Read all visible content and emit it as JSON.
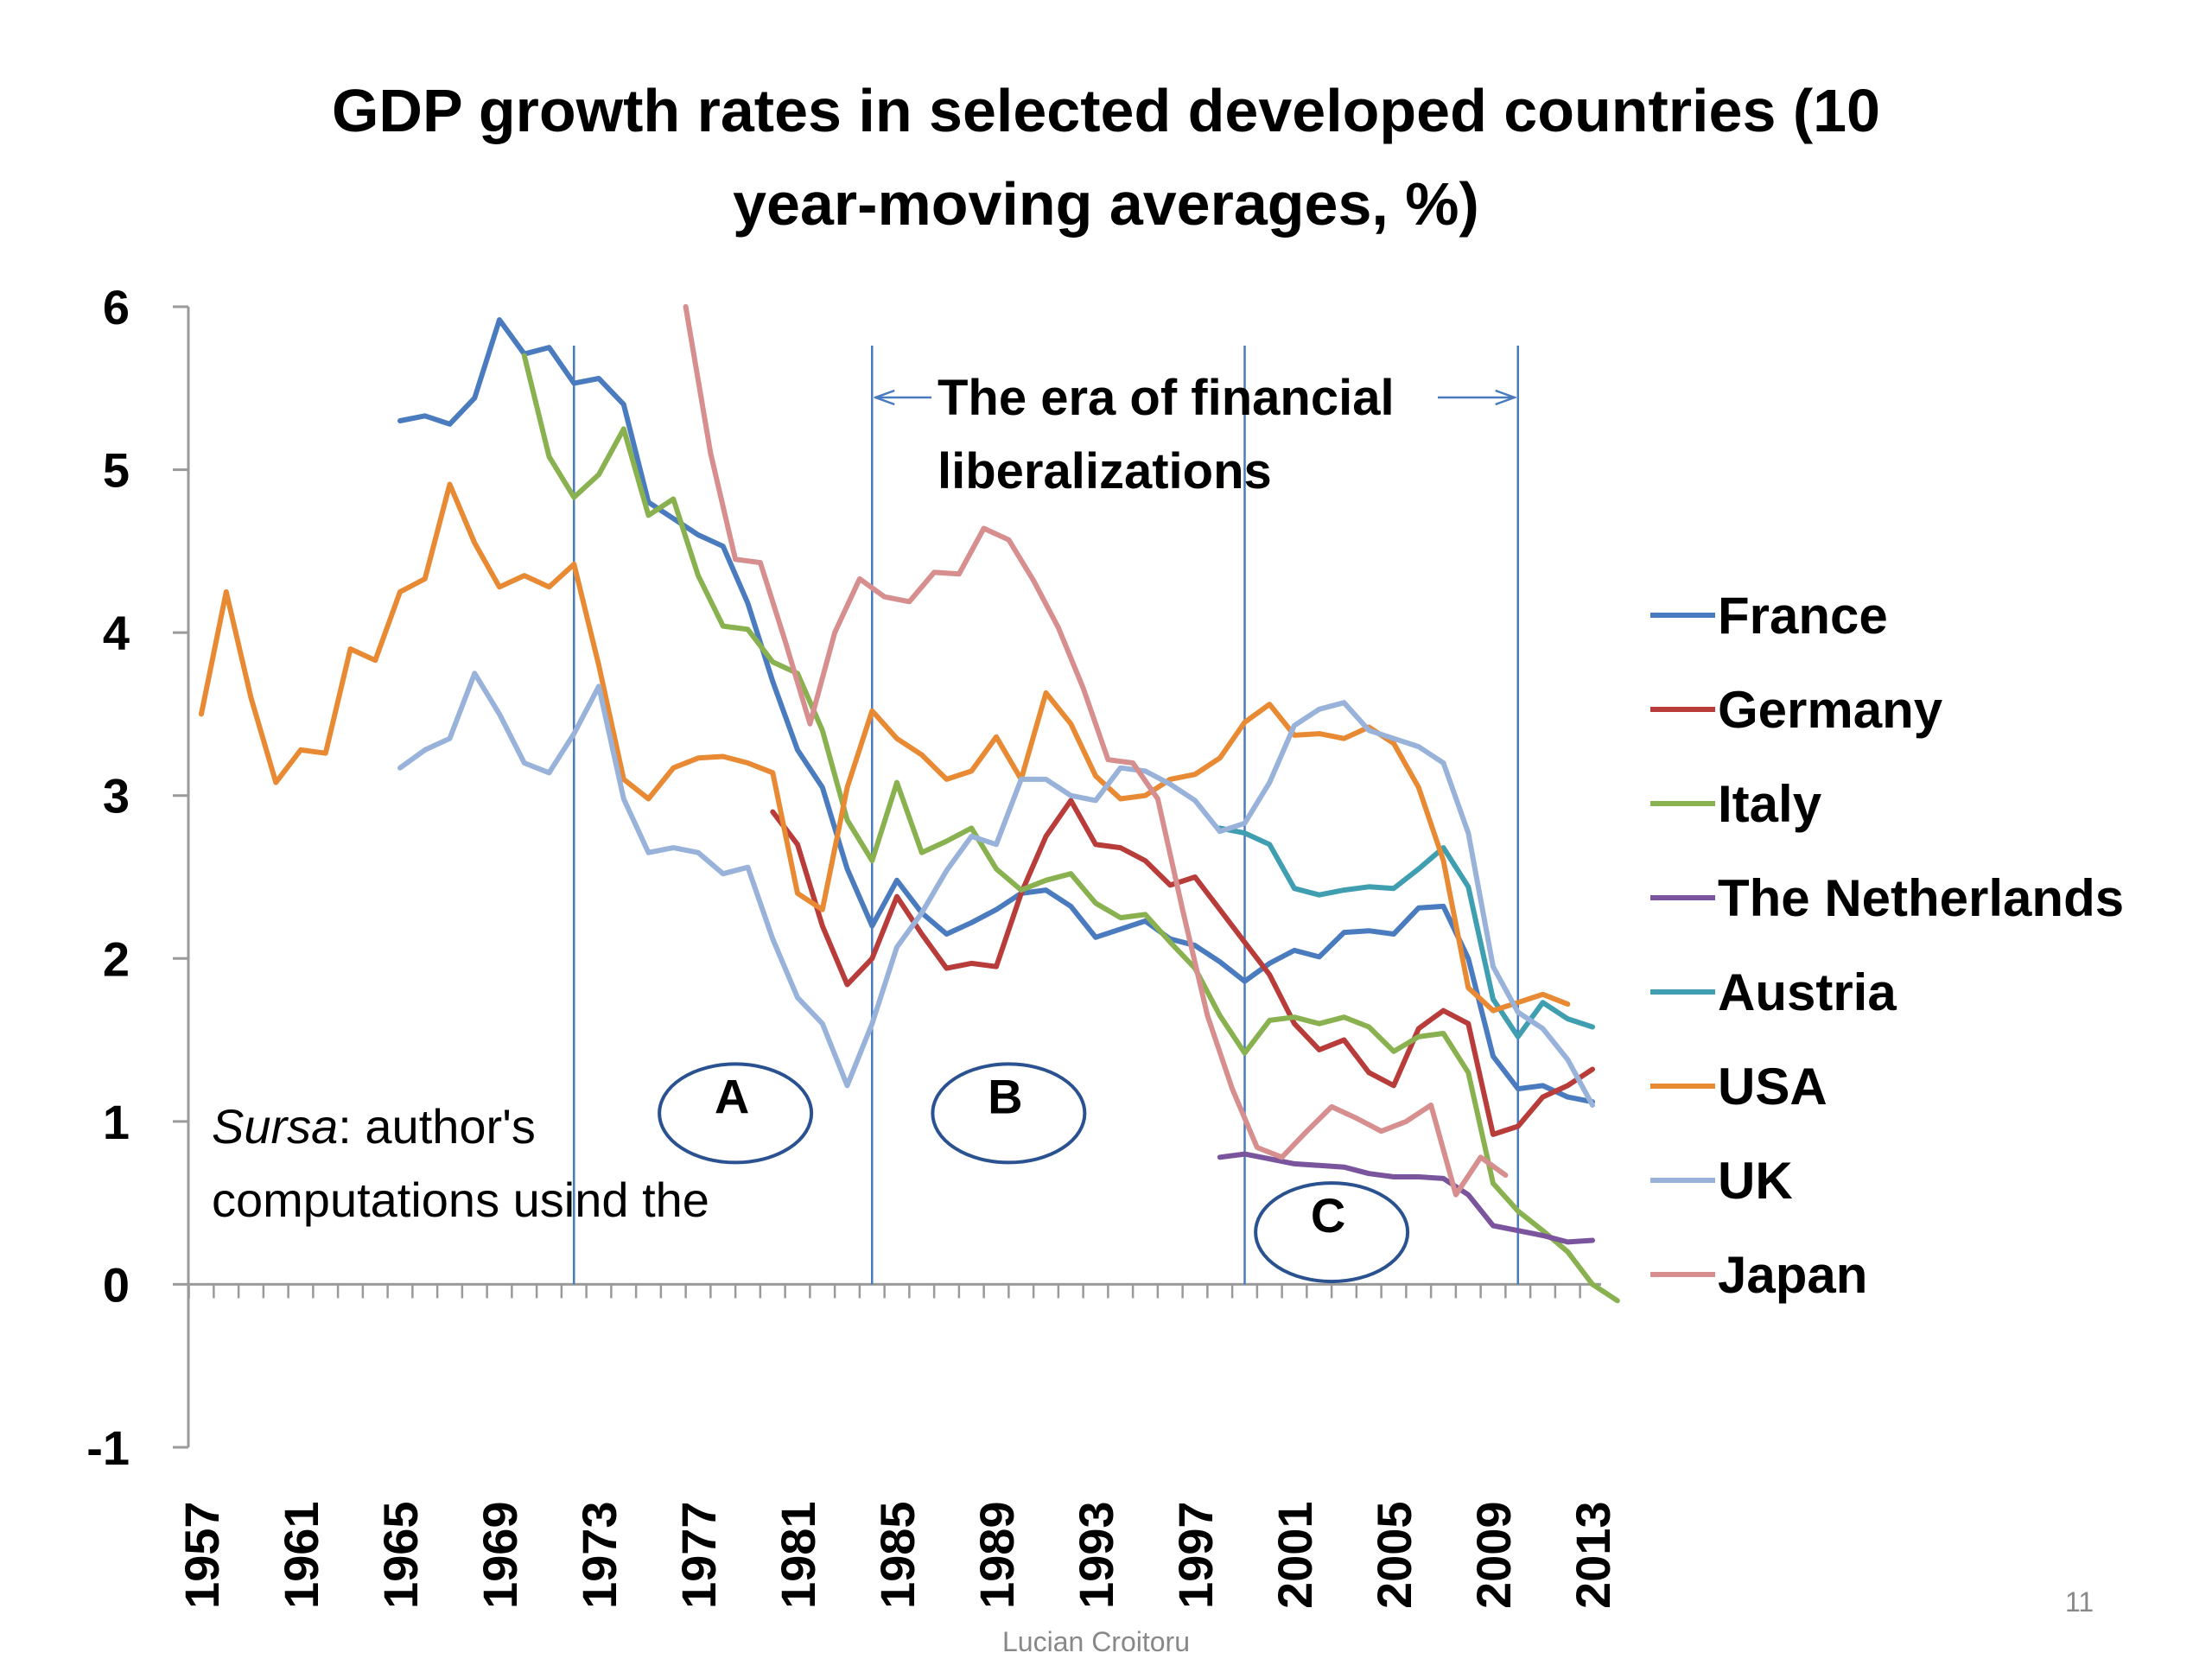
{
  "slide": {
    "author": "Lucian Croitoru",
    "page_number": "11"
  },
  "chart_data": {
    "type": "line",
    "title_line1": "GDP growth rates in selected developed countries (10",
    "title_line2": "year-moving averages, %)",
    "ylim": [
      -1,
      6
    ],
    "yticks": [
      "6",
      "5",
      "4",
      "3",
      "2",
      "1",
      "0",
      "-1"
    ],
    "x_range": [
      1957,
      2013
    ],
    "xtick_labels": [
      "1957",
      "1961",
      "1965",
      "1969",
      "1973",
      "1977",
      "1981",
      "1985",
      "1989",
      "1993",
      "1997",
      "2001",
      "2005",
      "2009",
      "2013"
    ],
    "legend_placement": "right",
    "annotations": {
      "era_line1": "The era of financial",
      "era_line2": "liberalizations",
      "era_start": 1984,
      "era_end": 2010,
      "vlines": [
        1972,
        1984,
        1999,
        2010
      ],
      "circles": [
        {
          "label": "A",
          "x": 1978.5,
          "y": 1.05
        },
        {
          "label": "B",
          "x": 1989.5,
          "y": 1.05
        },
        {
          "label": "C",
          "x": 2002.5,
          "y": 0.32
        }
      ],
      "source_italic": "Sursa",
      "source_rest": ": author's",
      "source_line2": "computations usind the"
    },
    "series": [
      {
        "name": "France",
        "color": "#4a7bbf",
        "x0": 1965,
        "values": [
          5.3,
          5.33,
          5.28,
          5.44,
          5.92,
          5.71,
          5.75,
          5.53,
          5.56,
          5.4,
          4.8,
          4.7,
          4.6,
          4.53,
          4.18,
          3.7,
          3.28,
          3.05,
          2.55,
          2.2,
          2.48,
          2.28,
          2.15,
          2.22,
          2.3,
          2.4,
          2.42,
          2.32,
          2.13,
          2.18,
          2.23,
          2.12,
          2.08,
          1.98,
          1.86,
          1.97,
          2.05,
          2.01,
          2.16,
          2.17,
          2.15,
          2.31,
          2.32,
          2.0,
          1.4,
          1.2,
          1.22,
          1.15,
          1.12
        ]
      },
      {
        "name": "Germany",
        "color": "#b83c3a",
        "x0": 1980,
        "values": [
          2.9,
          2.7,
          2.2,
          1.84,
          2.0,
          2.38,
          2.15,
          1.94,
          1.97,
          1.95,
          2.4,
          2.75,
          2.97,
          2.7,
          2.68,
          2.6,
          2.45,
          2.5,
          2.3,
          2.1,
          1.9,
          1.6,
          1.44,
          1.5,
          1.3,
          1.22,
          1.57,
          1.68,
          1.6,
          0.92,
          0.97,
          1.15,
          1.22,
          1.32
        ]
      },
      {
        "name": "Italy",
        "color": "#8ab14f",
        "x0": 1970,
        "values": [
          5.7,
          5.08,
          4.83,
          4.97,
          5.25,
          4.72,
          4.82,
          4.35,
          4.04,
          4.02,
          3.82,
          3.75,
          3.4,
          2.85,
          2.6,
          3.08,
          2.65,
          2.72,
          2.8,
          2.55,
          2.42,
          2.48,
          2.52,
          2.34,
          2.25,
          2.27,
          2.1,
          1.94,
          1.65,
          1.42,
          1.62,
          1.64,
          1.6,
          1.64,
          1.58,
          1.43,
          1.52,
          1.54,
          1.3,
          0.62,
          0.45,
          0.33,
          0.2,
          0.0,
          -0.1
        ]
      },
      {
        "name": "The Netherlands",
        "color": "#7a559e",
        "x0": 1998,
        "values": [
          0.78,
          0.8,
          0.77,
          0.74,
          0.73,
          0.72,
          0.68,
          0.66,
          0.66,
          0.65,
          0.55,
          0.36,
          0.33,
          0.3,
          0.26,
          0.27
        ]
      },
      {
        "name": "Austria",
        "color": "#3f9fb0",
        "x0": 1998,
        "values": [
          2.8,
          2.77,
          2.7,
          2.43,
          2.39,
          2.42,
          2.44,
          2.43,
          2.55,
          2.68,
          2.44,
          1.75,
          1.52,
          1.73,
          1.63,
          1.58
        ]
      },
      {
        "name": "USA",
        "color": "#e88a34",
        "x0": 1957,
        "values": [
          3.5,
          4.25,
          3.6,
          3.08,
          3.28,
          3.26,
          3.9,
          3.83,
          4.25,
          4.33,
          4.91,
          4.55,
          4.28,
          4.35,
          4.28,
          4.42,
          3.8,
          3.1,
          2.98,
          3.17,
          3.23,
          3.24,
          3.2,
          3.14,
          2.4,
          2.3,
          3.05,
          3.52,
          3.35,
          3.25,
          3.1,
          3.15,
          3.36,
          3.1,
          3.63,
          3.44,
          3.12,
          2.98,
          3.0,
          3.1,
          3.13,
          3.23,
          3.45,
          3.56,
          3.37,
          3.38,
          3.35,
          3.42,
          3.32,
          3.05,
          2.6,
          1.82,
          1.68,
          1.73,
          1.78,
          1.72
        ]
      },
      {
        "name": "UK",
        "color": "#98b2da",
        "x0": 1965,
        "values": [
          3.17,
          3.28,
          3.35,
          3.75,
          3.5,
          3.2,
          3.14,
          3.38,
          3.67,
          2.98,
          2.65,
          2.68,
          2.65,
          2.52,
          2.56,
          2.12,
          1.76,
          1.6,
          1.22,
          1.6,
          2.07,
          2.28,
          2.54,
          2.75,
          2.7,
          3.1,
          3.1,
          3.0,
          2.97,
          3.17,
          3.15,
          3.07,
          2.97,
          2.78,
          2.83,
          3.08,
          3.43,
          3.53,
          3.57,
          3.4,
          3.35,
          3.3,
          3.2,
          2.77,
          1.95,
          1.67,
          1.57,
          1.38,
          1.1
        ]
      },
      {
        "name": "Japan",
        "color": "#d68e8e",
        "x0": 1976.5,
        "values": [
          6.0,
          5.1,
          4.45,
          4.43,
          3.95,
          3.44,
          4.0,
          4.33,
          4.22,
          4.19,
          4.37,
          4.36,
          4.64,
          4.57,
          4.32,
          4.03,
          3.66,
          3.22,
          3.2,
          2.98,
          2.3,
          1.65,
          1.2,
          0.84,
          0.78,
          0.94,
          1.09,
          1.02,
          0.94,
          1.0,
          1.1,
          0.55,
          0.78,
          0.67
        ]
      }
    ]
  }
}
